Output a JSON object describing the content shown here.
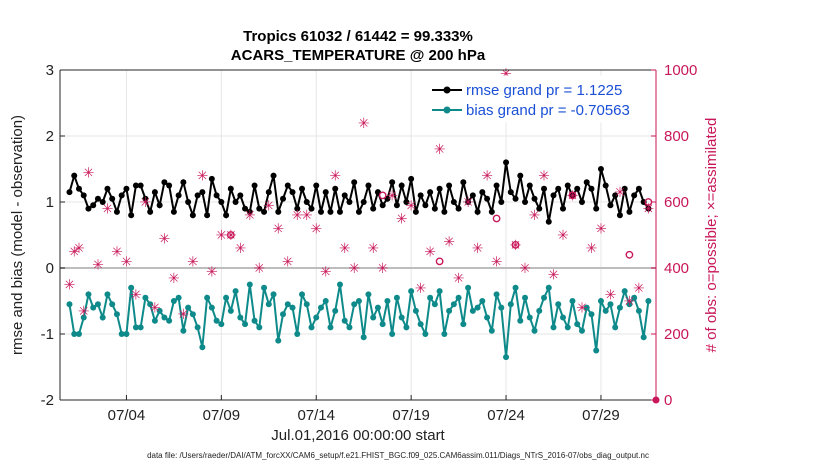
{
  "chart_data": {
    "type": "line",
    "title_line1": "Tropics 61032 / 61442 = 99.333%",
    "title_line2": "ACARS_TEMPERATURE @ 200 hPa",
    "xlabel": "Jul.01,2016 00:00:00 start",
    "ylabel_left": "rmse and bias (model - observation)",
    "ylabel_right": "# of obs: o=possible; ×=assimilated",
    "footer": "data file: /Users/raeder/DAI/ATM_forcXX/CAM6_setup/f.e21.FHIST_BGC.f09_025.CAM6assim.011/Diags_NTrS_2016-07/obs_diag_output.nc",
    "xlim": [
      0.5,
      31.9
    ],
    "ylim_left": [
      -2,
      3
    ],
    "ylim_right": [
      0,
      1000
    ],
    "x_ticks": [
      {
        "v": 4,
        "label": "07/04"
      },
      {
        "v": 9,
        "label": "07/09"
      },
      {
        "v": 14,
        "label": "07/14"
      },
      {
        "v": 19,
        "label": "07/19"
      },
      {
        "v": 24,
        "label": "07/24"
      },
      {
        "v": 29,
        "label": "07/29"
      }
    ],
    "y_left_ticks": [
      -2,
      -1,
      0,
      1,
      2,
      3
    ],
    "y_right_ticks": [
      0,
      200,
      400,
      600,
      800,
      1000
    ],
    "zero_line": 0,
    "series": [
      {
        "name": "rmse",
        "legend": "rmse grand pr = 1.1225",
        "color": "#000000",
        "axis": "left",
        "x": [
          1.0,
          1.25,
          1.5,
          1.75,
          2.0,
          2.25,
          2.5,
          2.75,
          3.0,
          3.25,
          3.5,
          3.75,
          4.0,
          4.25,
          4.5,
          4.75,
          5.0,
          5.25,
          5.5,
          5.75,
          6.0,
          6.25,
          6.5,
          6.75,
          7.0,
          7.25,
          7.5,
          7.75,
          8.0,
          8.25,
          8.5,
          8.75,
          9.0,
          9.25,
          9.5,
          9.75,
          10.0,
          10.25,
          10.5,
          10.75,
          11.0,
          11.25,
          11.5,
          11.75,
          12.0,
          12.25,
          12.5,
          12.75,
          13.0,
          13.25,
          13.5,
          13.75,
          14.0,
          14.25,
          14.5,
          14.75,
          15.0,
          15.25,
          15.5,
          15.75,
          16.0,
          16.25,
          16.5,
          16.75,
          17.0,
          17.25,
          17.5,
          17.75,
          18.0,
          18.25,
          18.5,
          18.75,
          19.0,
          19.25,
          19.5,
          19.75,
          20.0,
          20.25,
          20.5,
          20.75,
          21.0,
          21.25,
          21.5,
          21.75,
          22.0,
          22.25,
          22.5,
          22.75,
          23.0,
          23.25,
          23.5,
          23.75,
          24.0,
          24.25,
          24.5,
          24.75,
          25.0,
          25.25,
          25.5,
          25.75,
          26.0,
          26.25,
          26.5,
          26.75,
          27.0,
          27.25,
          27.5,
          27.75,
          28.0,
          28.25,
          28.5,
          28.75,
          29.0,
          29.25,
          29.5,
          29.75,
          30.0,
          30.25,
          30.5,
          30.75,
          31.0,
          31.25,
          31.5
        ],
        "y": [
          1.15,
          1.4,
          1.2,
          1.1,
          0.9,
          0.95,
          1.05,
          1.0,
          1.2,
          1.05,
          0.85,
          1.1,
          1.2,
          0.8,
          1.25,
          1.25,
          1.05,
          0.85,
          1.15,
          0.95,
          1.3,
          1.25,
          0.85,
          1.1,
          1.3,
          1.0,
          0.8,
          1.1,
          1.15,
          0.8,
          1.35,
          1.1,
          1.0,
          0.8,
          1.2,
          1.0,
          1.1,
          0.9,
          0.85,
          1.25,
          0.9,
          0.85,
          1.15,
          1.4,
          0.85,
          1.05,
          1.25,
          1.15,
          0.9,
          1.2,
          1.0,
          0.9,
          1.25,
          0.85,
          1.15,
          0.85,
          1.2,
          0.85,
          1.1,
          1.0,
          1.3,
          0.85,
          1.0,
          1.25,
          0.9,
          1.15,
          0.95,
          1.05,
          1.3,
          0.95,
          1.25,
          1.0,
          1.35,
          0.85,
          1.1,
          0.95,
          1.15,
          0.9,
          1.2,
          0.85,
          1.25,
          1.0,
          0.9,
          1.3,
          1.0,
          1.1,
          0.85,
          1.15,
          1.05,
          0.85,
          1.25,
          1.0,
          1.6,
          1.15,
          1.05,
          1.4,
          1.0,
          1.25,
          1.05,
          0.9,
          1.2,
          0.7,
          1.1,
          1.2,
          0.9,
          1.25,
          1.1,
          1.2,
          1.0,
          1.3,
          1.2,
          0.9,
          1.5,
          1.25,
          0.95,
          1.1,
          0.8,
          1.2,
          0.85,
          1.1,
          1.2,
          1.0,
          0.9
        ]
      },
      {
        "name": "bias",
        "legend": "bias grand pr = -0.70563",
        "color": "#0f8a8a",
        "axis": "left",
        "x": [
          1.0,
          1.25,
          1.5,
          1.75,
          2.0,
          2.25,
          2.5,
          2.75,
          3.0,
          3.25,
          3.5,
          3.75,
          4.0,
          4.25,
          4.5,
          4.75,
          5.0,
          5.25,
          5.5,
          5.75,
          6.0,
          6.25,
          6.5,
          6.75,
          7.0,
          7.25,
          7.5,
          7.75,
          8.0,
          8.25,
          8.5,
          8.75,
          9.0,
          9.25,
          9.5,
          9.75,
          10.0,
          10.25,
          10.5,
          10.75,
          11.0,
          11.25,
          11.5,
          11.75,
          12.0,
          12.25,
          12.5,
          12.75,
          13.0,
          13.25,
          13.5,
          13.75,
          14.0,
          14.25,
          14.5,
          14.75,
          15.0,
          15.25,
          15.5,
          15.75,
          16.0,
          16.25,
          16.5,
          16.75,
          17.0,
          17.25,
          17.5,
          17.75,
          18.0,
          18.25,
          18.5,
          18.75,
          19.0,
          19.25,
          19.5,
          19.75,
          20.0,
          20.25,
          20.5,
          20.75,
          21.0,
          21.25,
          21.5,
          21.75,
          22.0,
          22.25,
          22.5,
          22.75,
          23.0,
          23.25,
          23.5,
          23.75,
          24.0,
          24.25,
          24.5,
          24.75,
          25.0,
          25.25,
          25.5,
          25.75,
          26.0,
          26.25,
          26.5,
          26.75,
          27.0,
          27.25,
          27.5,
          27.75,
          28.0,
          28.25,
          28.5,
          28.75,
          29.0,
          29.25,
          29.5,
          29.75,
          30.0,
          30.25,
          30.5,
          30.75,
          31.0,
          31.25,
          31.5
        ],
        "y": [
          -0.55,
          -1.0,
          -1.0,
          -0.75,
          -0.4,
          -0.6,
          -0.55,
          -0.75,
          -0.4,
          -0.55,
          -0.7,
          -1.0,
          -1.0,
          -0.3,
          -0.9,
          -0.9,
          -0.45,
          -0.55,
          -0.8,
          -0.65,
          -0.75,
          -0.8,
          -0.5,
          -0.45,
          -0.95,
          -0.6,
          -0.7,
          -0.9,
          -1.2,
          -0.45,
          -0.6,
          -0.8,
          -0.85,
          -0.45,
          -0.65,
          -0.35,
          -0.75,
          -0.85,
          -0.25,
          -0.8,
          -0.9,
          -0.3,
          -0.55,
          -0.4,
          -1.1,
          -0.7,
          -0.55,
          -0.6,
          -1.0,
          -0.4,
          -0.55,
          -0.9,
          -0.75,
          -0.6,
          -0.5,
          -0.9,
          -0.65,
          -0.25,
          -0.8,
          -0.9,
          -0.55,
          -0.5,
          -1.05,
          -0.4,
          -0.75,
          -0.6,
          -0.85,
          -0.5,
          -1.0,
          -0.45,
          -0.75,
          -0.9,
          -0.35,
          -0.65,
          -0.85,
          -1.0,
          -0.45,
          -0.55,
          -0.35,
          -1.0,
          -0.65,
          -0.55,
          -0.45,
          -0.85,
          -0.3,
          -0.65,
          -0.6,
          -0.5,
          -0.75,
          -0.95,
          -0.4,
          -0.6,
          -1.35,
          -0.55,
          -0.3,
          -0.8,
          -0.45,
          -0.75,
          -0.95,
          -0.65,
          -0.45,
          -0.3,
          -0.9,
          -0.55,
          -0.75,
          -0.9,
          -0.5,
          -0.85,
          -0.95,
          -0.6,
          -0.7,
          -1.25,
          -0.5,
          -0.65,
          -0.55,
          -0.9,
          -0.6,
          -0.35,
          -0.55,
          -0.45,
          -0.65,
          -1.05,
          -0.5
        ]
      },
      {
        "name": "assimilated",
        "legend": "",
        "color": "#c8175a",
        "axis": "right",
        "marker": "asterisk",
        "x": [
          1.0,
          1.25,
          1.5,
          1.75,
          2.0,
          2.5,
          3.0,
          3.5,
          4.0,
          4.5,
          5.0,
          5.5,
          6.0,
          6.5,
          7.0,
          7.5,
          8.0,
          8.5,
          9.0,
          9.5,
          10.0,
          10.5,
          11.0,
          11.5,
          12.0,
          12.5,
          13.0,
          13.5,
          14.0,
          14.5,
          15.0,
          15.5,
          16.0,
          16.5,
          17.0,
          17.5,
          18.0,
          18.5,
          19.0,
          19.5,
          20.0,
          20.5,
          21.0,
          21.5,
          22.0,
          22.5,
          23.0,
          23.5,
          24.0,
          24.5,
          25.0,
          25.5,
          26.0,
          26.5,
          27.0,
          27.5,
          28.0,
          28.5,
          29.0,
          29.5,
          30.0,
          30.5,
          31.0,
          31.5
        ],
        "y": [
          350,
          450,
          460,
          270,
          690,
          410,
          580,
          450,
          420,
          320,
          600,
          280,
          490,
          370,
          260,
          420,
          680,
          390,
          500,
          500,
          460,
          560,
          400,
          590,
          520,
          420,
          560,
          560,
          520,
          390,
          680,
          460,
          400,
          840,
          460,
          400,
          620,
          550,
          590,
          340,
          450,
          760,
          480,
          370,
          600,
          460,
          680,
          420,
          990,
          470,
          400,
          560,
          680,
          380,
          500,
          620,
          280,
          460,
          520,
          320,
          630,
          300,
          340,
          580
        ]
      },
      {
        "name": "possible",
        "legend": "",
        "color": "#c8175a",
        "axis": "right",
        "marker": "circle",
        "x": [
          9.5,
          17.5,
          20.5,
          23.5,
          24.5,
          27.5,
          30.5,
          31.5
        ],
        "y": [
          500,
          620,
          420,
          550,
          470,
          620,
          440,
          600
        ]
      }
    ]
  }
}
